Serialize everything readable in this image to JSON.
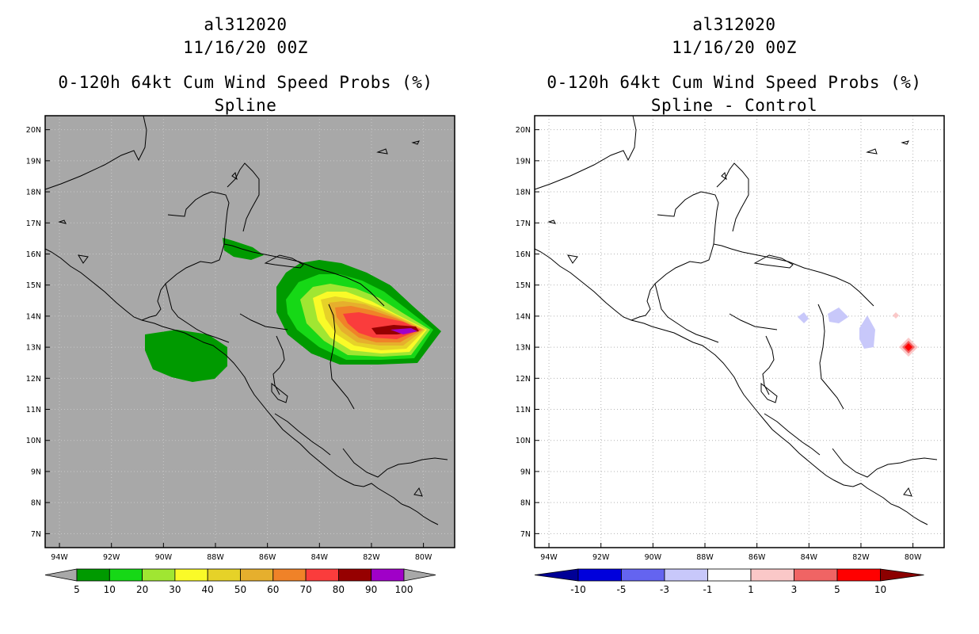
{
  "left_panel": {
    "title_line1": "al312020",
    "title_line2": "11/16/20 00Z",
    "title_line3": "0-120h 64kt Cum Wind Speed Probs (%)",
    "title_line4": "Spline",
    "background_color": "#a8a8a8",
    "colorbar": {
      "labels": [
        "5",
        "10",
        "20",
        "30",
        "40",
        "50",
        "60",
        "70",
        "80",
        "90",
        "100"
      ],
      "colors": [
        "#009a00",
        "#16d816",
        "#a0e632",
        "#fafa28",
        "#e6d228",
        "#e6af2d",
        "#f08228",
        "#fa3c3c",
        "#960000",
        "#a000c8"
      ],
      "extend_color": "#a8a8a8"
    }
  },
  "right_panel": {
    "title_line1": "al312020",
    "title_line2": "11/16/20 00Z",
    "title_line3": "0-120h 64kt Cum Wind Speed Probs (%)",
    "title_line4": "Spline - Control",
    "background_color": "#ffffff",
    "colorbar": {
      "labels": [
        "-10",
        "-5",
        "-3",
        "-1",
        "1",
        "3",
        "5",
        "10"
      ],
      "colors": [
        "#0000dc",
        "#6464f0",
        "#c8c8fa",
        "#ffffff",
        "#fac8c8",
        "#f06464",
        "#ff0000"
      ],
      "extend_low_color": "#000096",
      "extend_high_color": "#8c0000"
    }
  },
  "map_axes": {
    "lat_labels": [
      "20N",
      "19N",
      "18N",
      "17N",
      "16N",
      "15N",
      "14N",
      "13N",
      "12N",
      "11N",
      "10N",
      "9N",
      "8N",
      "7N"
    ],
    "lon_labels": [
      "94W",
      "92W",
      "90W",
      "88W",
      "86W",
      "84W",
      "82W",
      "80W"
    ],
    "lat_range": [
      6.55,
      20.45
    ],
    "lon_range": [
      -94.55,
      -78.8
    ],
    "grid": "dotted"
  }
}
